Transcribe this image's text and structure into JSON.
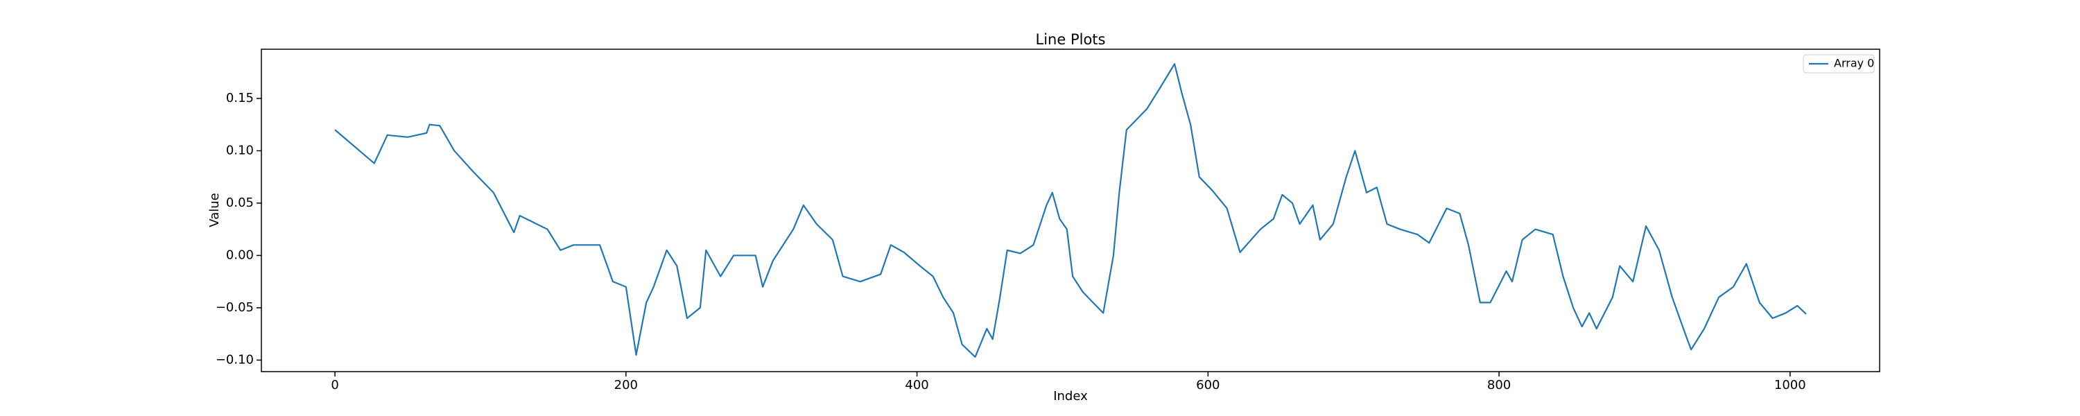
{
  "chart_data": {
    "type": "line",
    "title": "Line Plots",
    "x_label": "Index",
    "y_label": "Value",
    "legend": "upper right",
    "grid": false,
    "xlim": [
      -50.55,
      1061.55
    ],
    "ylim": [
      -0.111,
      0.197
    ],
    "xticks": [
      0,
      200,
      400,
      600,
      800,
      1000
    ],
    "yticks": [
      {
        "value": -0.1,
        "label": "−0.10"
      },
      {
        "value": -0.05,
        "label": "−0.05"
      },
      {
        "value": 0,
        "label": "0.00"
      },
      {
        "value": 0.05,
        "label": "0.05"
      },
      {
        "value": 0.1,
        "label": "0.10"
      },
      {
        "value": 0.15,
        "label": "0.15"
      }
    ],
    "x": [
      0,
      27,
      36,
      50,
      63,
      65,
      72,
      82,
      95,
      109,
      123,
      127,
      146,
      155,
      164,
      182,
      191,
      200,
      207,
      214,
      219,
      228,
      235,
      242,
      251,
      255,
      265,
      274,
      289,
      294,
      301,
      315,
      322,
      331,
      342,
      349,
      361,
      375,
      382,
      391,
      402,
      411,
      418,
      425,
      431,
      440,
      448,
      452,
      457,
      462,
      471,
      480,
      489,
      493,
      498,
      503,
      507,
      514,
      521,
      528,
      535,
      539,
      544,
      558,
      567,
      577,
      582,
      588,
      594,
      603,
      613,
      622,
      636,
      645,
      651,
      658,
      663,
      672,
      677,
      686,
      695,
      701,
      709,
      716,
      723,
      732,
      744,
      752,
      764,
      773,
      779,
      787,
      794,
      805,
      809,
      816,
      825,
      837,
      844,
      851,
      857,
      862,
      867,
      878,
      883,
      892,
      901,
      910,
      919,
      928,
      932,
      941,
      951,
      961,
      970,
      979,
      988,
      997,
      1005,
      1011
    ],
    "series": [
      {
        "name": "Array 0",
        "color": "#1f77b4",
        "values": [
          0.12,
          0.088,
          0.115,
          0.113,
          0.117,
          0.125,
          0.124,
          0.1,
          0.08,
          0.06,
          0.022,
          0.038,
          0.025,
          0.005,
          0.01,
          0.01,
          -0.025,
          -0.03,
          -0.095,
          -0.045,
          -0.03,
          0.005,
          -0.01,
          -0.06,
          -0.05,
          0.005,
          -0.02,
          0.0,
          0.0,
          -0.03,
          -0.005,
          0.025,
          0.048,
          0.03,
          0.015,
          -0.02,
          -0.025,
          -0.018,
          0.01,
          0.003,
          -0.01,
          -0.02,
          -0.04,
          -0.055,
          -0.085,
          -0.097,
          -0.07,
          -0.08,
          -0.04,
          0.005,
          0.002,
          0.01,
          0.048,
          0.06,
          0.035,
          0.025,
          -0.02,
          -0.035,
          -0.045,
          -0.055,
          0.0,
          0.06,
          0.12,
          0.14,
          0.16,
          0.183,
          0.155,
          0.125,
          0.075,
          0.062,
          0.045,
          0.003,
          0.025,
          0.035,
          0.058,
          0.05,
          0.03,
          0.048,
          0.015,
          0.03,
          0.075,
          0.1,
          0.06,
          0.065,
          0.03,
          0.025,
          0.02,
          0.012,
          0.045,
          0.04,
          0.01,
          -0.045,
          -0.045,
          -0.015,
          -0.025,
          0.015,
          0.025,
          0.02,
          -0.02,
          -0.05,
          -0.068,
          -0.055,
          -0.07,
          -0.04,
          -0.01,
          -0.025,
          0.028,
          0.005,
          -0.04,
          -0.075,
          -0.09,
          -0.07,
          -0.04,
          -0.03,
          -0.008,
          -0.045,
          -0.06,
          -0.055,
          -0.048,
          -0.056
        ]
      }
    ]
  }
}
